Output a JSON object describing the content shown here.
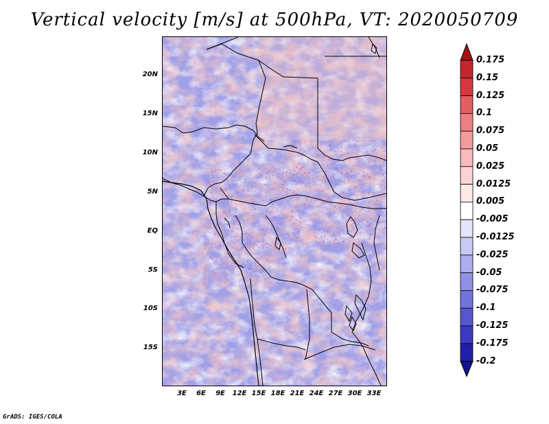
{
  "title": "Vertical velocity [m/s] at 500hPa, VT: 2020050709",
  "credit": "GrADS: IGES/COLA",
  "map": {
    "y_ticks": [
      "20N",
      "15N",
      "10N",
      "5N",
      "EQ",
      "5S",
      "10S",
      "15S"
    ],
    "x_ticks": [
      "3E",
      "6E",
      "9E",
      "12E",
      "15E",
      "18E",
      "21E",
      "24E",
      "27E",
      "30E",
      "33E"
    ],
    "field_colors": {
      "strong_down": "#b2182b",
      "down": "#f4a5a5",
      "weak": "#ffffff",
      "up": "#a8a8ef",
      "strong_up": "#3b3bc9"
    }
  },
  "colorbar": {
    "labels": [
      "0.175",
      "0.15",
      "0.125",
      "0.1",
      "0.075",
      "0.05",
      "0.025",
      "0.0125",
      "0.005",
      "-0.005",
      "-0.0125",
      "-0.025",
      "-0.05",
      "-0.075",
      "-0.1",
      "-0.125",
      "-0.175",
      "-0.2"
    ],
    "colors": [
      "#a50f15",
      "#c1272d",
      "#d7383e",
      "#e35e61",
      "#ec7f82",
      "#f29c9e",
      "#f7b9ba",
      "#fbd3d4",
      "#fde8e8",
      "#ffffff",
      "#e4e4fa",
      "#c9c9f5",
      "#adadef",
      "#9090e6",
      "#7373dc",
      "#5656d0",
      "#3a3ac2",
      "#2020aa",
      "#14148a"
    ]
  }
}
